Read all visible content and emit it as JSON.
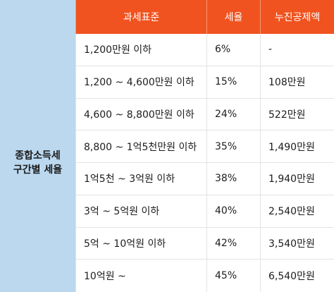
{
  "side_label": [
    "종합소득세",
    "구간별 세율"
  ],
  "headers": [
    "과세표준",
    "세율",
    "누진공제액"
  ],
  "rows": [
    {
      "base": "1,200만원 이하",
      "rate": "6%",
      "deduction": "-"
    },
    {
      "base": "1,200 ~ 4,600만원 이하",
      "rate": "15%",
      "deduction": "108만원"
    },
    {
      "base": "4,600 ~ 8,800만원 이하",
      "rate": "24%",
      "deduction": "522만원"
    },
    {
      "base": "8,800 ~ 1억5천만원 이하",
      "rate": "35%",
      "deduction": "1,490만원"
    },
    {
      "base": "1억5천 ~ 3억원 이하",
      "rate": "38%",
      "deduction": "1,940만원"
    },
    {
      "base": "3억 ~ 5억원 이하",
      "rate": "40%",
      "deduction": "2,540만원"
    },
    {
      "base": "5억 ~ 10억원 이하",
      "rate": "42%",
      "deduction": "3,540만원"
    },
    {
      "base": "10억원 ~",
      "rate": "45%",
      "deduction": "6,540만원"
    }
  ],
  "colors": {
    "header_bg": "#f0531f",
    "side_bg": "#bcd8ee"
  }
}
